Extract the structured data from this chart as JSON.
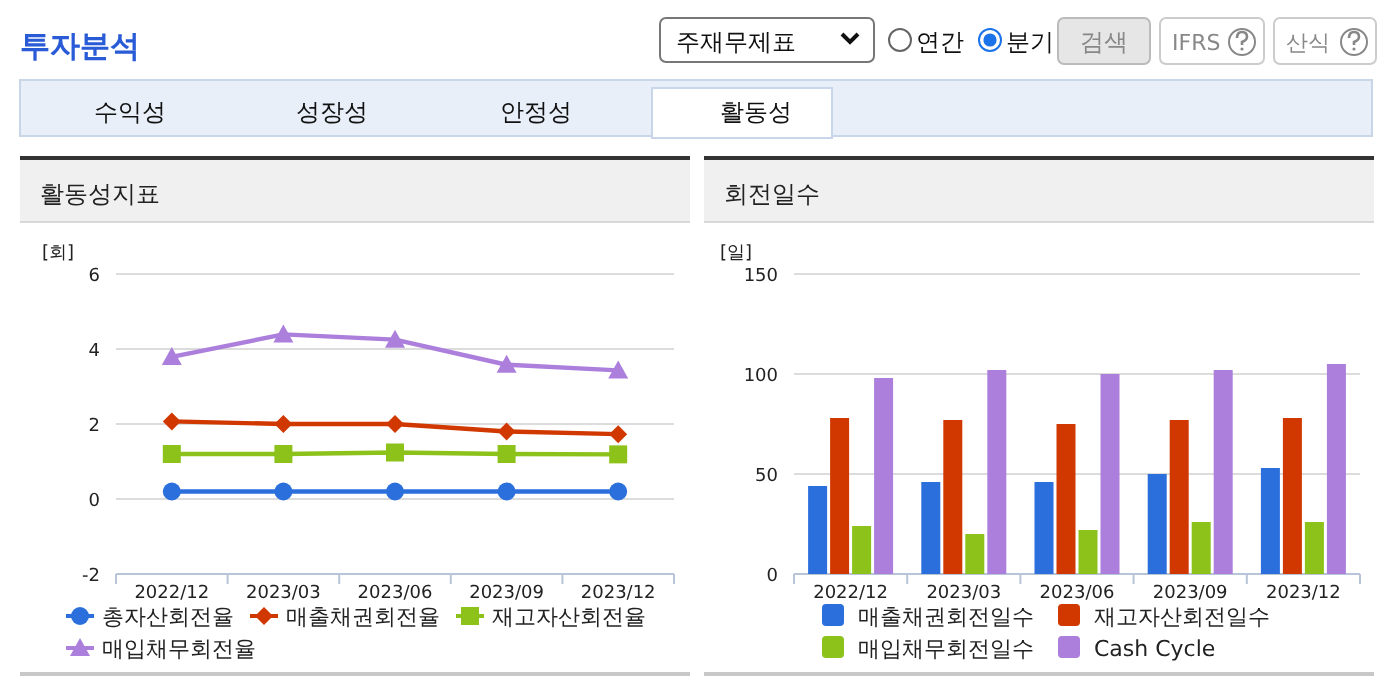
{
  "chart_data": [
    {
      "type": "other",
      "title": "투자분석",
      "annotations": [
        "주재무제표",
        "연간",
        "분기",
        "검색",
        "IFRS",
        "산식",
        "수익성",
        "성장성",
        "안정성",
        "활동성"
      ]
    },
    {
      "type": "line",
      "title": "활동성지표",
      "ylabel": "[회]",
      "categories": [
        "2022/12",
        "2023/03",
        "2023/06",
        "2023/09",
        "2023/12"
      ],
      "ylim": [
        -2,
        6
      ],
      "yticks": [
        -2,
        0,
        2,
        4,
        6
      ],
      "grid": "y",
      "legend": "bottom",
      "series": [
        {
          "name": "총자산회전율",
          "color": "#2b6fdc",
          "marker": "circle",
          "values": [
            0.2,
            0.2,
            0.2,
            0.2,
            0.2
          ]
        },
        {
          "name": "매출채권회전율",
          "color": "#d13800",
          "marker": "diamond",
          "values": [
            2.07,
            2.0,
            2.0,
            1.8,
            1.73
          ]
        },
        {
          "name": "재고자산회전율",
          "color": "#8cc21a",
          "marker": "square",
          "values": [
            1.2,
            1.2,
            1.24,
            1.2,
            1.19
          ]
        },
        {
          "name": "매입채무회전율",
          "color": "#ab7fdb",
          "marker": "triangle",
          "values": [
            3.79,
            4.39,
            4.25,
            3.58,
            3.43
          ]
        }
      ]
    },
    {
      "type": "bar",
      "title": "회전일수",
      "ylabel": "[일]",
      "categories": [
        "2022/12",
        "2023/03",
        "2023/06",
        "2023/09",
        "2023/12"
      ],
      "ylim": [
        0,
        150
      ],
      "yticks": [
        0,
        50,
        100,
        150
      ],
      "grid": "y",
      "legend": "bottom",
      "series": [
        {
          "name": "매출채권회전일수",
          "color": "#2b6fdc",
          "values": [
            44,
            46,
            46,
            50,
            53
          ]
        },
        {
          "name": "재고자산회전일수",
          "color": "#d13800",
          "values": [
            78,
            77,
            75,
            77,
            78
          ]
        },
        {
          "name": "매입채무회전일수",
          "color": "#8cc21a",
          "values": [
            24,
            20,
            22,
            26,
            26
          ]
        },
        {
          "name": "Cash Cycle",
          "color": "#ab7fdb",
          "values": [
            98,
            102,
            100,
            102,
            105
          ]
        }
      ]
    }
  ]
}
